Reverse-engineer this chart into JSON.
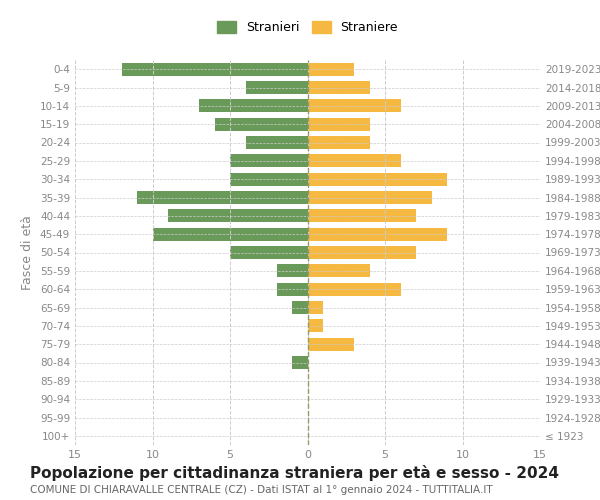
{
  "age_groups": [
    "100+",
    "95-99",
    "90-94",
    "85-89",
    "80-84",
    "75-79",
    "70-74",
    "65-69",
    "60-64",
    "55-59",
    "50-54",
    "45-49",
    "40-44",
    "35-39",
    "30-34",
    "25-29",
    "20-24",
    "15-19",
    "10-14",
    "5-9",
    "0-4"
  ],
  "birth_years": [
    "≤ 1923",
    "1924-1928",
    "1929-1933",
    "1934-1938",
    "1939-1943",
    "1944-1948",
    "1949-1953",
    "1954-1958",
    "1959-1963",
    "1964-1968",
    "1969-1973",
    "1974-1978",
    "1979-1983",
    "1984-1988",
    "1989-1993",
    "1994-1998",
    "1999-2003",
    "2004-2008",
    "2009-2013",
    "2014-2018",
    "2019-2023"
  ],
  "males": [
    0,
    0,
    0,
    0,
    1,
    0,
    0,
    1,
    2,
    2,
    5,
    10,
    9,
    11,
    5,
    5,
    4,
    6,
    7,
    4,
    12
  ],
  "females": [
    0,
    0,
    0,
    0,
    0,
    3,
    1,
    1,
    6,
    4,
    7,
    9,
    7,
    8,
    9,
    6,
    4,
    4,
    6,
    4,
    3
  ],
  "male_color": "#6a9a5a",
  "female_color": "#f5b942",
  "background_color": "#ffffff",
  "grid_color": "#cccccc",
  "title": "Popolazione per cittadinanza straniera per età e sesso - 2024",
  "subtitle": "COMUNE DI CHIARAVALLE CENTRALE (CZ) - Dati ISTAT al 1° gennaio 2024 - TUTTITALIA.IT",
  "ylabel_left": "Fasce di età",
  "legend_male": "Stranieri",
  "legend_female": "Straniere",
  "xlim": 15,
  "tick_color": "#888888",
  "title_fontsize": 11,
  "subtitle_fontsize": 7.5,
  "label_fontsize": 9
}
